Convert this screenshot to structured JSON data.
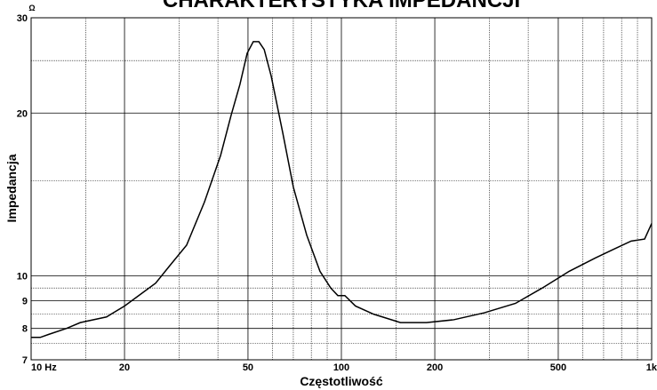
{
  "chart_data": {
    "type": "line",
    "title": "CHARAKTERYSTYKA IMPEDANCJI",
    "y_unit": "Ω",
    "xlabel": "Częstotliwość",
    "ylabel": "Impedancja",
    "xscale": "log",
    "yscale": "log",
    "grid": true,
    "xlim": [
      10,
      1000
    ],
    "ylim": [
      7,
      30
    ],
    "xticks": [
      {
        "value": 10,
        "label": "10 Hz"
      },
      20,
      50,
      100,
      200,
      500,
      {
        "value": 1000,
        "label": "1k"
      }
    ],
    "yticks": [
      7,
      8,
      9,
      10,
      20,
      30
    ],
    "minor_xticks": [
      15,
      30,
      40,
      60,
      70,
      80,
      90,
      150,
      300,
      400,
      600,
      700,
      800,
      900
    ],
    "minor_yticks": [
      7.5,
      8.5,
      9.5,
      15,
      25
    ],
    "series": [
      {
        "name": "Impedancja",
        "color": "#000000",
        "x": [
          10,
          10.7,
          11.4,
          13,
          14.4,
          17.5,
          20,
          22.8,
          25.2,
          27.8,
          31.7,
          36.2,
          40.8,
          44.1,
          47.1,
          49.7,
          52,
          54.2,
          56.4,
          59.4,
          64.7,
          70,
          77.3,
          85.3,
          92.4,
          97.4,
          102.6,
          111,
          127,
          155,
          188,
          230,
          289,
          364,
          444,
          542,
          659,
          753,
          859,
          949,
          1000
        ],
        "values": [
          7.7,
          7.7,
          7.8,
          8.0,
          8.2,
          8.4,
          8.8,
          9.3,
          9.7,
          10.4,
          11.4,
          13.7,
          16.7,
          19.8,
          22.6,
          25.8,
          27.1,
          27.1,
          26.2,
          23.4,
          18.4,
          14.6,
          11.9,
          10.2,
          9.5,
          9.2,
          9.2,
          8.8,
          8.5,
          8.2,
          8.2,
          8.3,
          8.55,
          8.9,
          9.5,
          10.2,
          10.8,
          11.2,
          11.6,
          11.7,
          12.5
        ]
      }
    ]
  }
}
